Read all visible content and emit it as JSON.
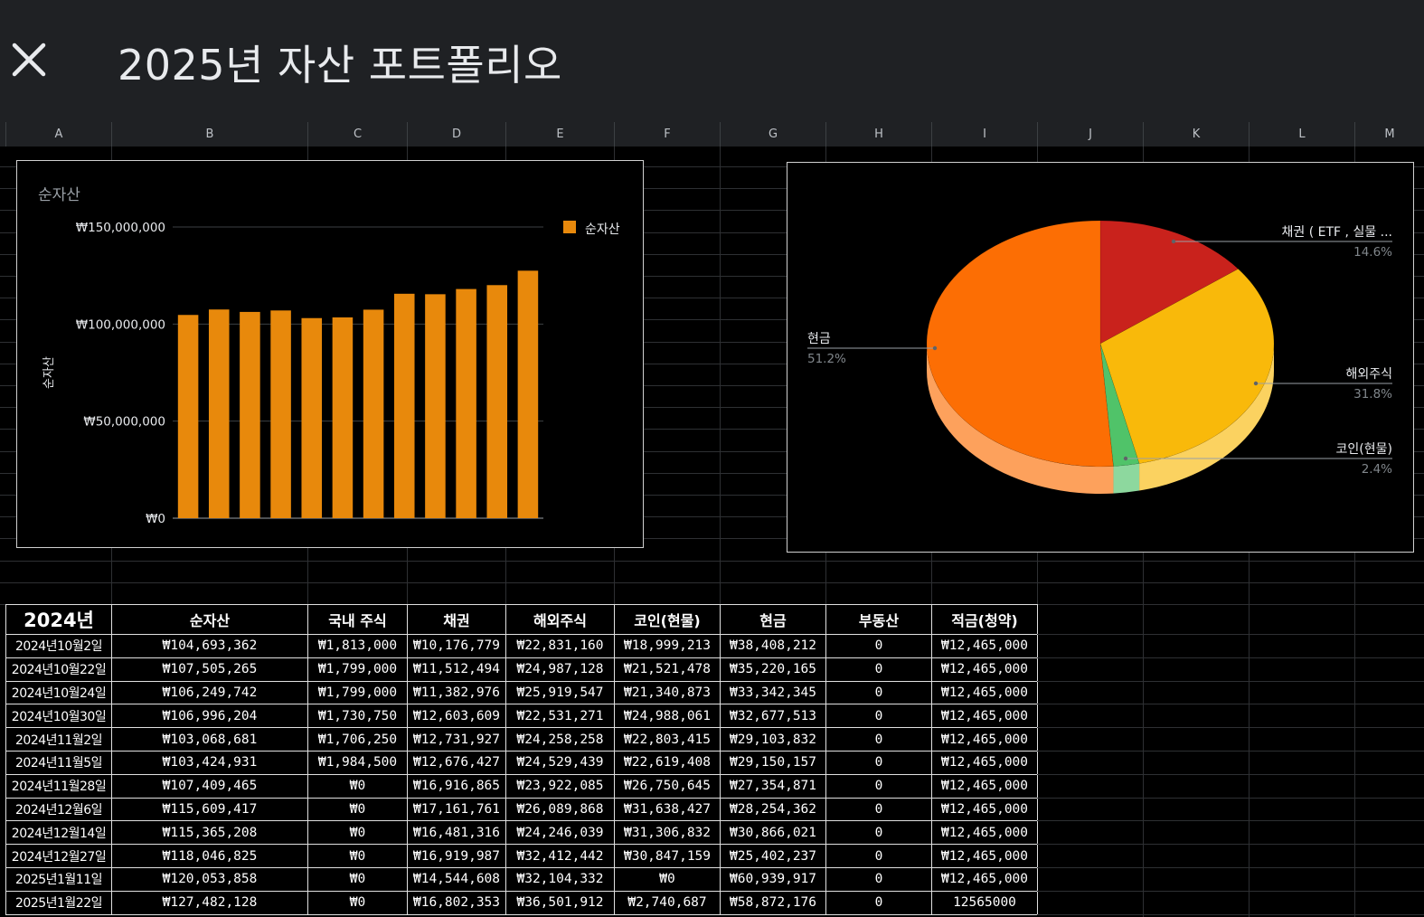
{
  "header": {
    "title": "2025년 자산 포트폴리오",
    "close_icon": "close-icon"
  },
  "columns": [
    "A",
    "B",
    "C",
    "D",
    "E",
    "F",
    "G",
    "H",
    "I",
    "J",
    "K",
    "L",
    "M"
  ],
  "chart_data": [
    {
      "type": "bar",
      "title": "순자산",
      "ylabel": "순자산",
      "xlabel": "",
      "legend": "top-right",
      "ylim": [
        0,
        150000000
      ],
      "yticks": [
        "₩0",
        "₩50,000,000",
        "₩100,000,000",
        "₩150,000,000"
      ],
      "ytick_values": [
        0,
        50000000,
        100000000,
        150000000
      ],
      "color": "#e8890c",
      "series": [
        {
          "name": "순자산",
          "values": [
            104693362,
            107505265,
            106249742,
            106996204,
            103068681,
            103424931,
            107409465,
            115609417,
            115365208,
            118046825,
            120053858,
            127482128
          ]
        }
      ]
    },
    {
      "type": "pie",
      "style": "3d",
      "slices": [
        {
          "label": "채권 ( ETF , 실물 ...",
          "value": 14.6,
          "pct": "14.6%",
          "color": "#c9221c"
        },
        {
          "label": "해외주식",
          "value": 31.8,
          "pct": "31.8%",
          "color": "#f9b90a"
        },
        {
          "label": "코인(현물)",
          "value": 2.4,
          "pct": "2.4%",
          "color": "#50c369"
        },
        {
          "label": "현금",
          "value": 51.2,
          "pct": "51.2%",
          "color": "#fc6e04"
        }
      ]
    }
  ],
  "table": {
    "headers": [
      "2024년",
      "순자산",
      "국내 주식",
      "채권",
      "해외주식",
      "코인(현물)",
      "현금",
      "부동산",
      "적금(청약)"
    ],
    "rows": [
      [
        "2024년10월2일",
        "₩104,693,362",
        "₩1,813,000",
        "₩10,176,779",
        "₩22,831,160",
        "₩18,999,213",
        "₩38,408,212",
        "0",
        "₩12,465,000"
      ],
      [
        "2024년10월22일",
        "₩107,505,265",
        "₩1,799,000",
        "₩11,512,494",
        "₩24,987,128",
        "₩21,521,478",
        "₩35,220,165",
        "0",
        "₩12,465,000"
      ],
      [
        "2024년10월24일",
        "₩106,249,742",
        "₩1,799,000",
        "₩11,382,976",
        "₩25,919,547",
        "₩21,340,873",
        "₩33,342,345",
        "0",
        "₩12,465,000"
      ],
      [
        "2024년10월30일",
        "₩106,996,204",
        "₩1,730,750",
        "₩12,603,609",
        "₩22,531,271",
        "₩24,988,061",
        "₩32,677,513",
        "0",
        "₩12,465,000"
      ],
      [
        "2024년11월2일",
        "₩103,068,681",
        "₩1,706,250",
        "₩12,731,927",
        "₩24,258,258",
        "₩22,803,415",
        "₩29,103,832",
        "0",
        "₩12,465,000"
      ],
      [
        "2024년11월5일",
        "₩103,424,931",
        "₩1,984,500",
        "₩12,676,427",
        "₩24,529,439",
        "₩22,619,408",
        "₩29,150,157",
        "0",
        "₩12,465,000"
      ],
      [
        "2024년11월28일",
        "₩107,409,465",
        "₩0",
        "₩16,916,865",
        "₩23,922,085",
        "₩26,750,645",
        "₩27,354,871",
        "0",
        "₩12,465,000"
      ],
      [
        "2024년12월6일",
        "₩115,609,417",
        "₩0",
        "₩17,161,761",
        "₩26,089,868",
        "₩31,638,427",
        "₩28,254,362",
        "0",
        "₩12,465,000"
      ],
      [
        "2024년12월14일",
        "₩115,365,208",
        "₩0",
        "₩16,481,316",
        "₩24,246,039",
        "₩31,306,832",
        "₩30,866,021",
        "0",
        "₩12,465,000"
      ],
      [
        "2024년12월27일",
        "₩118,046,825",
        "₩0",
        "₩16,919,987",
        "₩32,412,442",
        "₩30,847,159",
        "₩25,402,237",
        "0",
        "₩12,465,000"
      ],
      [
        "2025년1월11일",
        "₩120,053,858",
        "₩0",
        "₩14,544,608",
        "₩32,104,332",
        "₩0",
        "₩60,939,917",
        "0",
        "₩12,465,000"
      ],
      [
        "2025년1월22일",
        "₩127,482,128",
        "₩0",
        "₩16,802,353",
        "₩36,501,912",
        "₩2,740,687",
        "₩58,872,176",
        "0",
        "12565000"
      ]
    ]
  }
}
